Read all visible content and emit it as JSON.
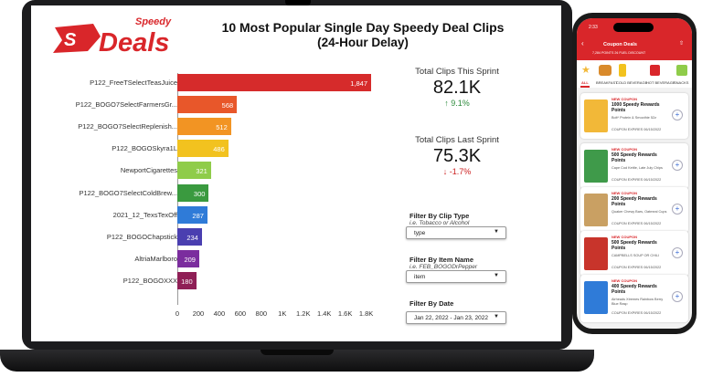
{
  "dashboard": {
    "brand": {
      "top": "Speedy",
      "main": "Deals",
      "accent": "#d9262a"
    },
    "title_line1": "10 Most Popular Single Day Speedy Deal Clips",
    "title_line2": "(24-Hour Delay)"
  },
  "chart_data": {
    "type": "bar",
    "orientation": "horizontal",
    "categories": [
      "P122_FreeTSelectTeasJuice",
      "P122_BOGO7SelectFarmersGr...",
      "P122_BOGO7SelectReplenish...",
      "P122_BOGOSkyra1L",
      "NewportCigarettes",
      "P122_BOGO7SelectColdBrew...",
      "2021_12_TexsTexOff",
      "P122_BOGOChapstick",
      "AltriaMarlboro",
      "P122_BOGOXXX"
    ],
    "values": [
      1847,
      568,
      512,
      486,
      321,
      300,
      287,
      234,
      209,
      180
    ],
    "colors": [
      "#d62b2b",
      "#e8572a",
      "#f29423",
      "#f2c21f",
      "#8fcc4a",
      "#3a9a3f",
      "#2f7bd8",
      "#4a3fb0",
      "#7b2d9e",
      "#8f1f56"
    ],
    "xlim": [
      0,
      1847
    ],
    "xticks": [
      "0",
      "200",
      "400",
      "600",
      "800",
      "1K",
      "1.2K",
      "1.4K",
      "1.6K",
      "1.8K"
    ],
    "tick_values": [
      0,
      200,
      400,
      600,
      800,
      1000,
      1200,
      1400,
      1600,
      1800
    ]
  },
  "kpis": {
    "this_label": "Total Clips This Sprint",
    "this_value": "82.1K",
    "this_delta": "↑ 9.1%",
    "last_label": "Total Clips Last Sprint",
    "last_value": "75.3K",
    "last_delta": "↓ -1.7%"
  },
  "filters": {
    "clip_type_label": "Filter By Clip Type",
    "clip_type_hint": "i.e. Tobacco or Alcohol",
    "clip_type_value": "type",
    "item_label": "Filter By Item Name",
    "item_hint": "i.e. FEB_BOGODrPepper",
    "item_value": "item",
    "date_label": "Filter By Date",
    "date_value": "Jan 22, 2022 - Jan 23, 2022"
  },
  "phone": {
    "time": "2:33",
    "header": "Coupon Deals",
    "points_line": "7,284 POINTS  2¢ FUEL DISCOUNT",
    "categories": [
      "ALL",
      "BREAKFAST",
      "COLD BEVERAGE",
      "HOT BEVERAGE",
      "SNACKS"
    ],
    "coupons": [
      {
        "badge": "NEW COUPON",
        "points": "1000 Speedy Rewards Points",
        "desc": "Bolt* Protein & Smoothie 52z",
        "exp": "COUPON EXPIRES 06/15/2022",
        "thumb": "#f2b838"
      },
      {
        "badge": "NEW COUPON",
        "points": "500 Speedy Rewards Points",
        "desc": "Cape Cod Kettle, Late July Chips",
        "exp": "COUPON EXPIRES 06/15/2022",
        "thumb": "#3f9a4a"
      },
      {
        "badge": "NEW COUPON",
        "points": "200 Speedy Rewards Points",
        "desc": "Quaker Chewy Bars, Oatmeal Cups",
        "exp": "COUPON EXPIRES 06/15/2022",
        "thumb": "#c9a063"
      },
      {
        "badge": "NEW COUPON",
        "points": "500 Speedy Rewards Points",
        "desc": "CAMPBELLS SOUP OR CHILI",
        "exp": "COUPON EXPIRES 06/15/2022",
        "thumb": "#c8342b"
      },
      {
        "badge": "NEW COUPON",
        "points": "400 Speedy Rewards Points",
        "desc": "Airheads Xtremes Rainbow Berry Blue Rasp",
        "exp": "COUPON EXPIRES 06/15/2022",
        "thumb": "#2f7bd8"
      }
    ]
  }
}
